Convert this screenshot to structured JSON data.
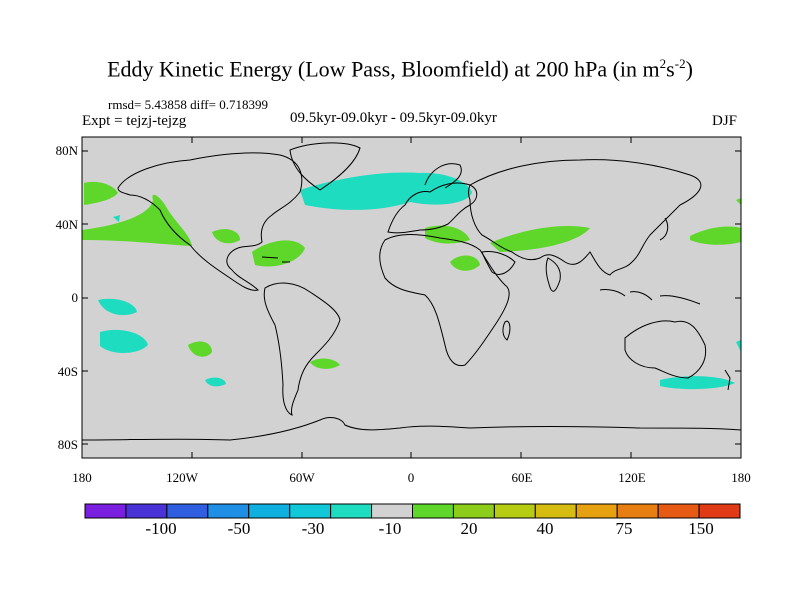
{
  "title": {
    "text": "Eddy Kinetic Energy (Low Pass, Bloomfield) at 200 hPa (in m",
    "sup1": "2",
    "mid": "s",
    "sup2": "-2",
    "end": ")"
  },
  "stats": "rmsd= 5.43858  diff= 0.718399",
  "experiment": "Expt = tejzj-tejzg",
  "period": "09.5kyr-09.0kyr - 09.5kyr-09.0kyr",
  "season": "DJF",
  "lat_labels": [
    "80N",
    "40N",
    "0",
    "40S",
    "80S"
  ],
  "lon_labels": [
    "180",
    "120W",
    "60W",
    "0",
    "60E",
    "120E",
    "180"
  ],
  "colorbar": {
    "colors": [
      "#7a1fe0",
      "#4a33d6",
      "#2f5fe0",
      "#1f8fe6",
      "#0fb0e0",
      "#10c8d8",
      "#1edcc0",
      "#d2d2d2",
      "#5ed62a",
      "#8ccc1a",
      "#b6cc12",
      "#d6bc10",
      "#e6a010",
      "#e67e12",
      "#e65a14",
      "#e03a16"
    ],
    "labels": [
      "-100",
      "-50",
      "-30",
      "-10",
      "20",
      "40",
      "75",
      "150"
    ],
    "land_color": "#d2d2d2",
    "negative_anomaly_color": "#1edcc0",
    "positive_anomaly_color": "#5ed62a"
  }
}
